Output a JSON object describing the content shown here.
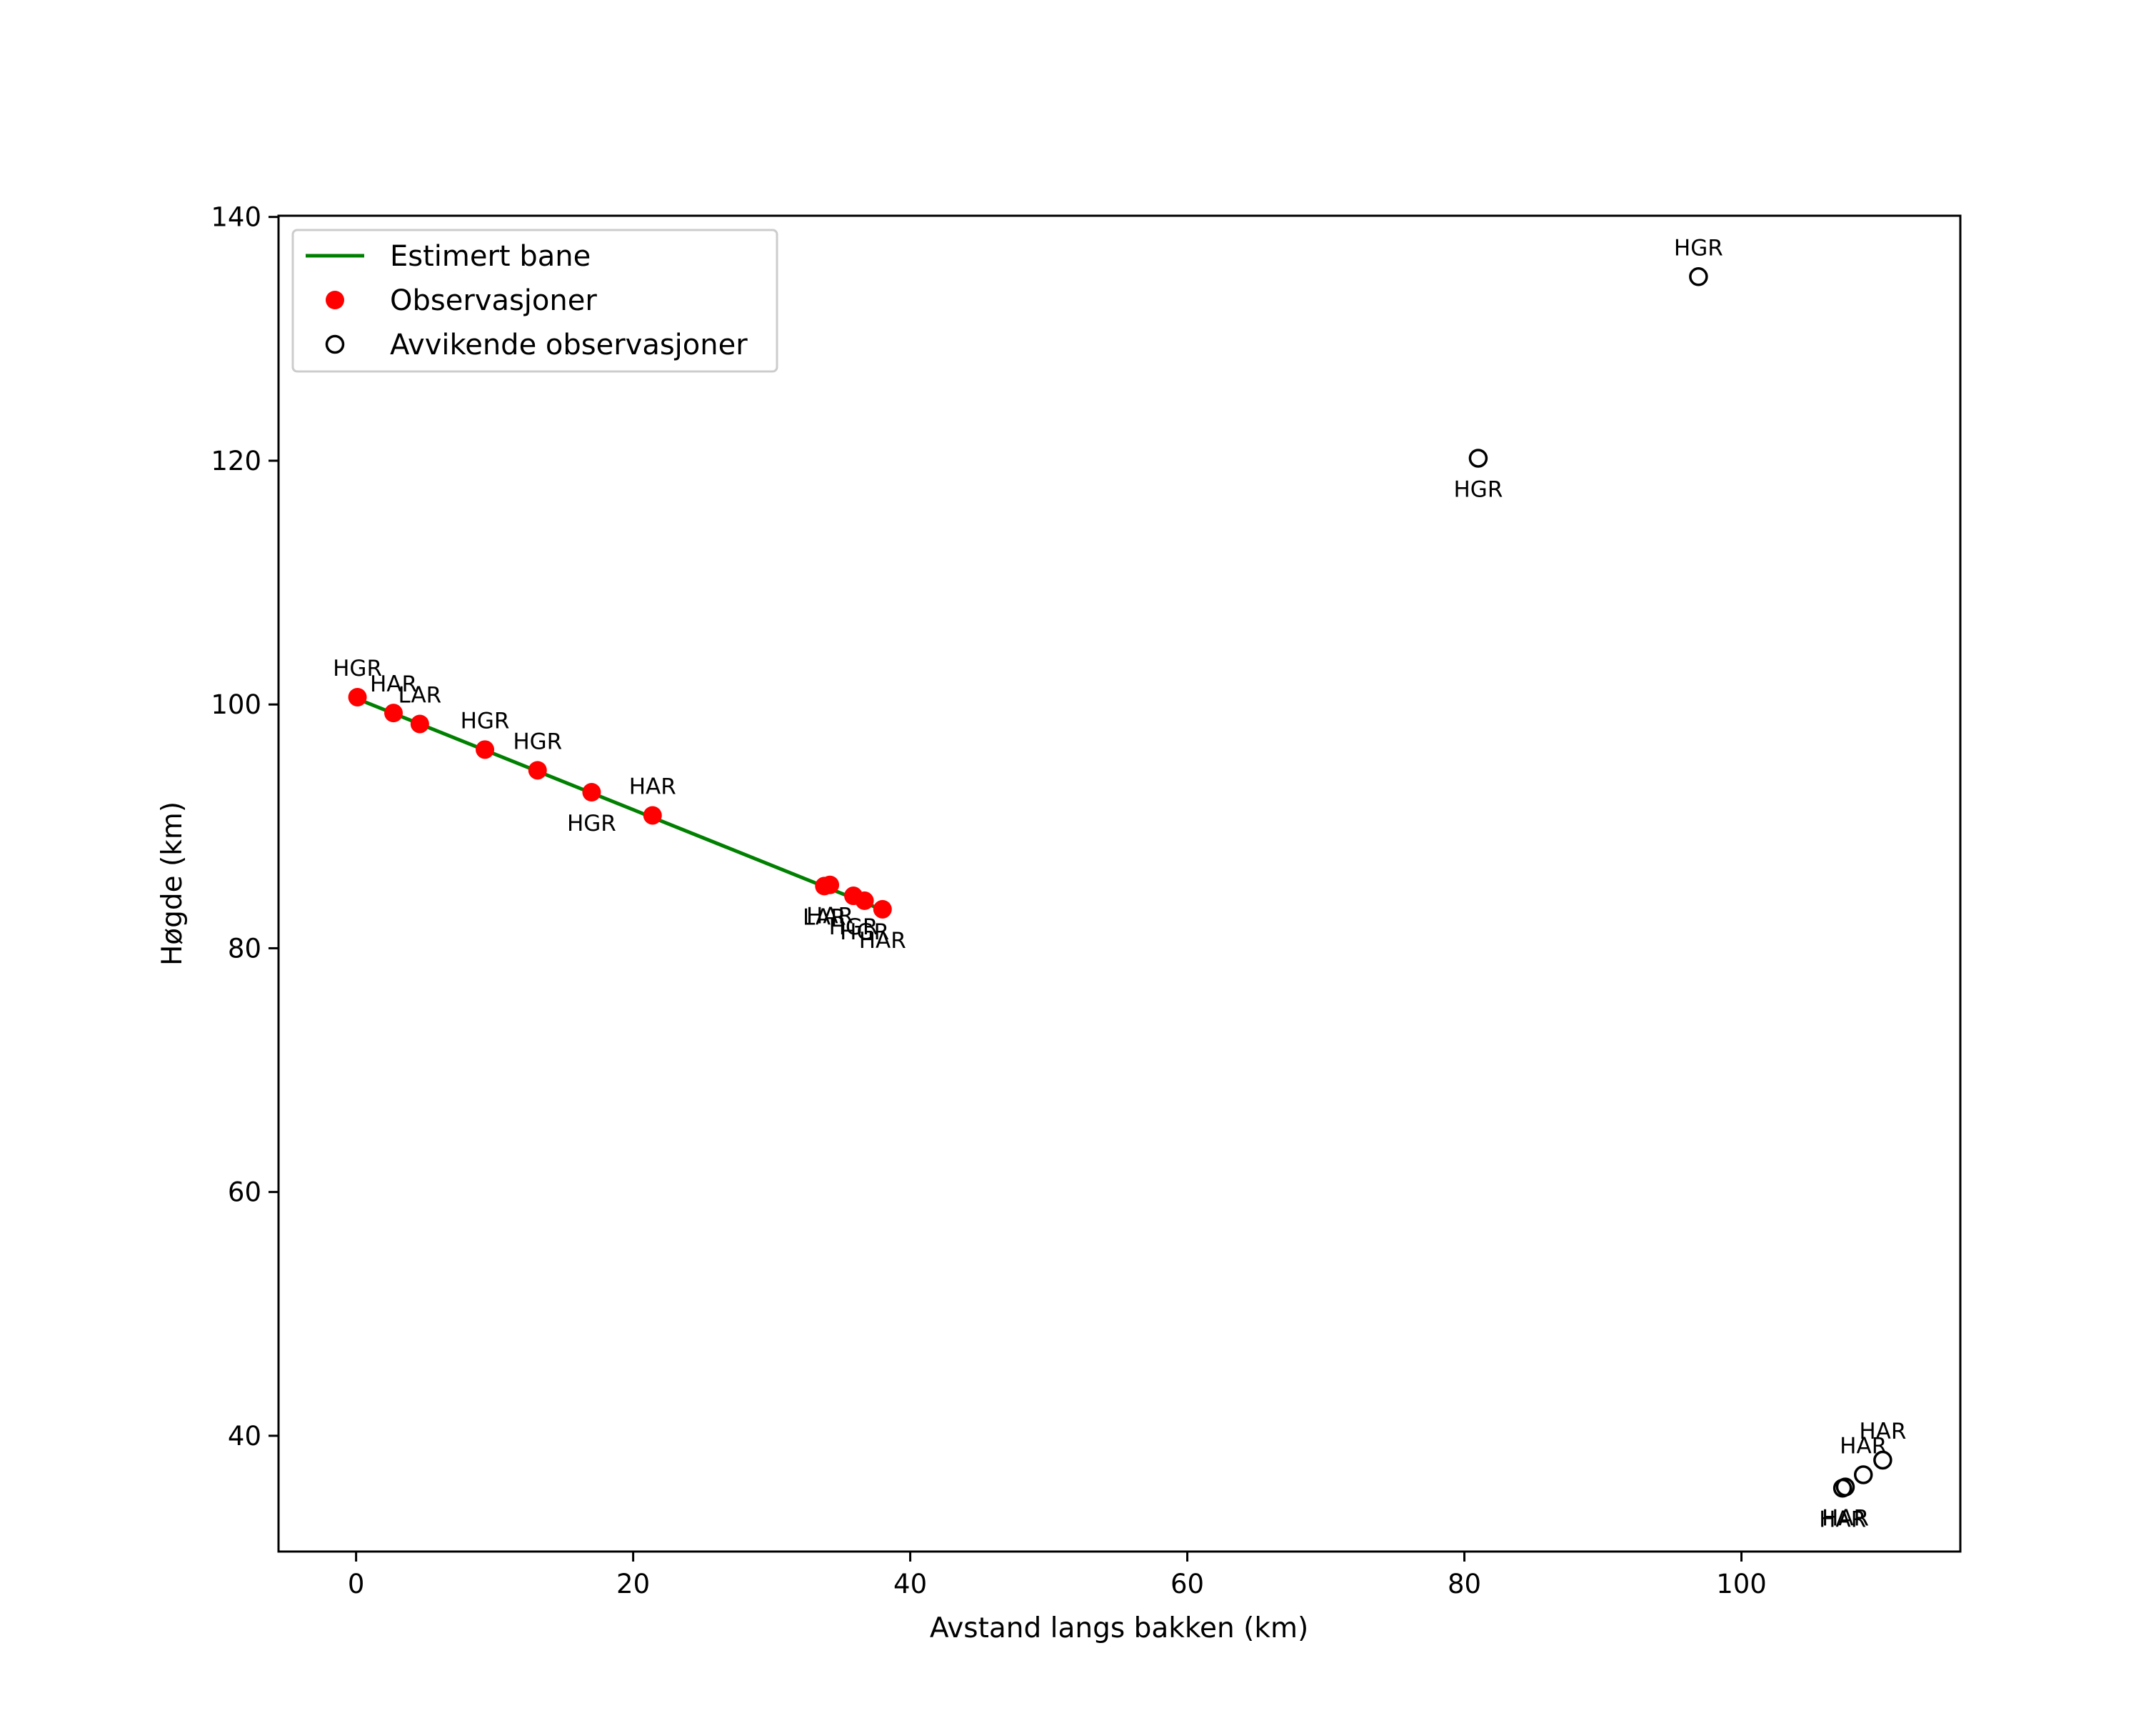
{
  "chart_data": {
    "type": "scatter",
    "title": "",
    "xlabel": "Avstand langs bakken (km)",
    "ylabel": "Høgde (km)",
    "xlim": [
      -5.6,
      115.8
    ],
    "ylim": [
      30.5,
      140.1
    ],
    "xticks": [
      0,
      20,
      40,
      60,
      80,
      100
    ],
    "yticks": [
      40,
      60,
      80,
      100,
      120,
      140
    ],
    "grid": false,
    "legend_position": "upper left",
    "legend": [
      {
        "key": "line",
        "label": "Estimert bane",
        "color": "#008000"
      },
      {
        "key": "obs",
        "label": "Observasjoner",
        "color": "#ff0000"
      },
      {
        "key": "outlier",
        "label": "Avvikende observasjoner",
        "color": "#000000"
      }
    ],
    "series": [
      {
        "name": "Estimert bane",
        "kind": "line",
        "color": "#008000",
        "x": [
          0,
          38.1
        ],
        "y": [
          100.5,
          83.1
        ]
      },
      {
        "name": "Observasjoner",
        "kind": "marker-filled",
        "color": "#ff0000",
        "points": [
          {
            "x": 0.1,
            "y": 100.6,
            "label": "HGR",
            "pos": "above"
          },
          {
            "x": 2.7,
            "y": 99.3,
            "label": "HAR",
            "pos": "above"
          },
          {
            "x": 4.6,
            "y": 98.4,
            "label": "LAR",
            "pos": "above"
          },
          {
            "x": 9.3,
            "y": 96.3,
            "label": "HGR",
            "pos": "above"
          },
          {
            "x": 13.1,
            "y": 94.6,
            "label": "HGR",
            "pos": "above"
          },
          {
            "x": 17.0,
            "y": 92.8,
            "label": "HGR",
            "pos": "below"
          },
          {
            "x": 21.4,
            "y": 90.9,
            "label": "HAR",
            "pos": "above"
          },
          {
            "x": 33.8,
            "y": 85.1,
            "label": "LAR",
            "pos": "below"
          },
          {
            "x": 34.2,
            "y": 85.2,
            "label": "HAR",
            "pos": "below"
          },
          {
            "x": 35.9,
            "y": 84.3,
            "label": "HGR",
            "pos": "below"
          },
          {
            "x": 36.7,
            "y": 83.9,
            "label": "HGR",
            "pos": "below"
          },
          {
            "x": 38.0,
            "y": 83.2,
            "label": "HAR",
            "pos": "below"
          }
        ]
      },
      {
        "name": "Avvikende observasjoner",
        "kind": "marker-open",
        "color": "#000000",
        "points": [
          {
            "x": 96.9,
            "y": 135.1,
            "label": "HGR",
            "pos": "above"
          },
          {
            "x": 81.0,
            "y": 120.2,
            "label": "HGR",
            "pos": "below"
          },
          {
            "x": 110.2,
            "y": 38.0,
            "label": "HAR",
            "pos": "above"
          },
          {
            "x": 108.8,
            "y": 36.8,
            "label": "HAR",
            "pos": "above"
          },
          {
            "x": 107.5,
            "y": 35.8,
            "label": "HAR",
            "pos": "below"
          },
          {
            "x": 107.3,
            "y": 35.7,
            "label": "HAR",
            "pos": "below"
          }
        ]
      }
    ]
  }
}
